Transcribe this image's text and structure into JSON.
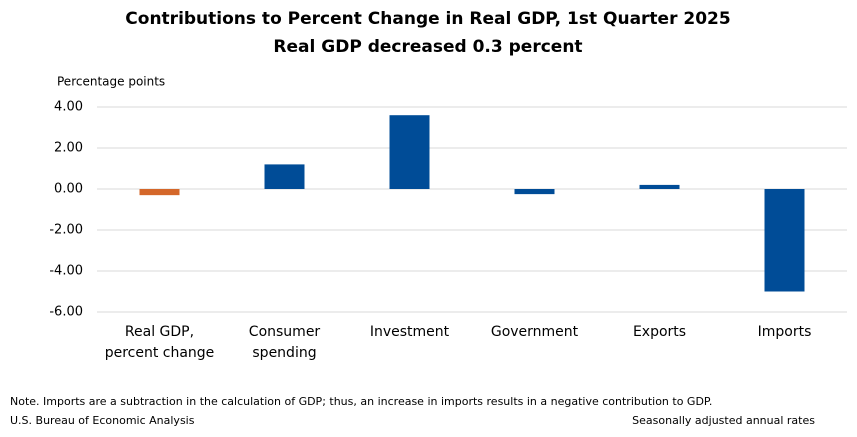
{
  "chart_data": {
    "type": "bar",
    "title": "Contributions to Percent Change in Real GDP, 1st Quarter 2025",
    "subtitle": "Real GDP decreased 0.3 percent",
    "y_label": "Percentage points",
    "categories": [
      "Real GDP, percent change",
      "Consumer spending",
      "Investment",
      "Government",
      "Exports",
      "Imports"
    ],
    "values": [
      -0.3,
      1.2,
      3.6,
      -0.25,
      0.2,
      -5.0
    ],
    "colors": [
      "#d4672a",
      "#004c97",
      "#004c97",
      "#004c97",
      "#004c97",
      "#004c97"
    ],
    "ylim": [
      -6,
      4
    ],
    "yticks": [
      {
        "value": -6,
        "label": "-6.00"
      },
      {
        "value": -4,
        "label": "-4.00"
      },
      {
        "value": -2,
        "label": "-2.00"
      },
      {
        "value": 0,
        "label": "0.00"
      },
      {
        "value": 2,
        "label": "2.00"
      },
      {
        "value": 4,
        "label": "4.00"
      }
    ],
    "grid": true,
    "note": "Note. Imports are a subtraction in the calculation of GDP; thus, an increase in imports results in a negative contribution to GDP.",
    "source": "U.S. Bureau of Economic Analysis",
    "footnote": "Seasonally adjusted annual rates"
  }
}
